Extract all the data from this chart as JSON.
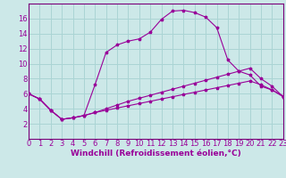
{
  "xlabel": "Windchill (Refroidissement éolien,°C)",
  "xlim": [
    0,
    23
  ],
  "ylim": [
    0,
    18
  ],
  "xticks": [
    0,
    1,
    2,
    3,
    4,
    5,
    6,
    7,
    8,
    9,
    10,
    11,
    12,
    13,
    14,
    15,
    16,
    17,
    18,
    19,
    20,
    21,
    22,
    23
  ],
  "yticks": [
    2,
    4,
    6,
    8,
    10,
    12,
    14,
    16
  ],
  "background_color": "#cce8e8",
  "grid_color": "#aad4d4",
  "line_color": "#990099",
  "spine_color": "#7a007a",
  "line1_x": [
    0,
    1,
    2,
    3,
    4,
    5,
    6,
    7,
    8,
    9,
    10,
    11,
    12,
    13,
    14,
    15,
    16,
    17,
    18,
    19,
    20,
    21,
    22,
    23
  ],
  "line1_y": [
    6.0,
    5.3,
    3.8,
    2.6,
    2.8,
    3.1,
    7.2,
    11.5,
    12.5,
    13.0,
    13.3,
    14.2,
    15.9,
    17.0,
    17.1,
    16.8,
    16.2,
    14.8,
    10.5,
    9.0,
    8.5,
    7.0,
    6.5,
    5.7
  ],
  "line2_x": [
    0,
    1,
    2,
    3,
    4,
    5,
    6,
    7,
    8,
    9,
    10,
    11,
    12,
    13,
    14,
    15,
    16,
    17,
    18,
    19,
    20,
    21,
    22,
    23
  ],
  "line2_y": [
    6.0,
    5.3,
    3.8,
    2.6,
    2.8,
    3.1,
    3.5,
    4.0,
    4.5,
    5.0,
    5.4,
    5.8,
    6.2,
    6.6,
    7.0,
    7.4,
    7.8,
    8.2,
    8.6,
    9.0,
    9.4,
    8.0,
    7.0,
    5.6
  ],
  "line3_x": [
    0,
    1,
    2,
    3,
    4,
    5,
    6,
    7,
    8,
    9,
    10,
    11,
    12,
    13,
    14,
    15,
    16,
    17,
    18,
    19,
    20,
    21,
    22,
    23
  ],
  "line3_y": [
    6.0,
    5.3,
    3.8,
    2.6,
    2.8,
    3.1,
    3.5,
    3.8,
    4.1,
    4.4,
    4.7,
    5.0,
    5.3,
    5.6,
    5.9,
    6.2,
    6.5,
    6.8,
    7.1,
    7.4,
    7.7,
    7.2,
    6.5,
    5.6
  ],
  "tick_fontsize": 6,
  "xlabel_fontsize": 6.5
}
